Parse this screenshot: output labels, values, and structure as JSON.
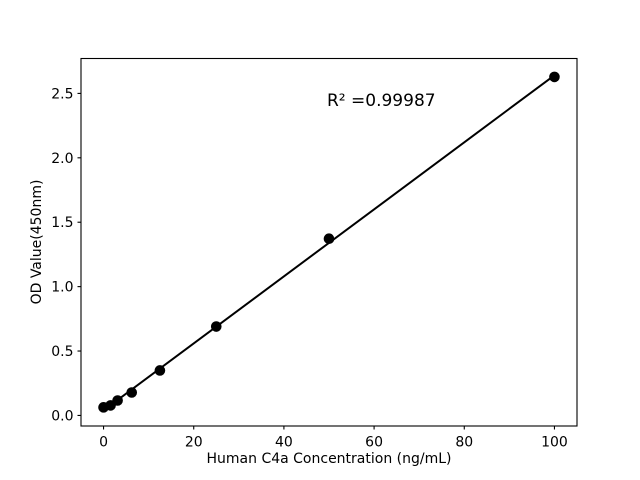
{
  "chart_data": {
    "type": "scatter",
    "title": "",
    "xlabel": "Human C4a Concentration (ng/mL)",
    "ylabel": "OD Value(450nm)",
    "annotation": "R² =0.99987",
    "x": [
      0,
      1.56,
      3.12,
      6.25,
      12.5,
      25,
      50,
      100
    ],
    "y": [
      0.063,
      0.078,
      0.116,
      0.178,
      0.349,
      0.69,
      1.372,
      2.628
    ],
    "fit": {
      "type": "linear",
      "r_squared": 0.99987
    },
    "xticks": [
      0,
      20,
      40,
      60,
      80,
      100
    ],
    "xtick_labels": [
      "0",
      "20",
      "40",
      "60",
      "80",
      "100"
    ],
    "yticks": [
      0.0,
      0.5,
      1.0,
      1.5,
      2.0,
      2.5
    ],
    "ytick_labels": [
      "0.0",
      "0.5",
      "1.0",
      "1.5",
      "2.0",
      "2.5"
    ],
    "xlim": [
      -5,
      105
    ],
    "ylim": [
      -0.082,
      2.771
    ],
    "grid": false,
    "legend": null,
    "marker_color": "#000000",
    "line_color": "#000000",
    "axis_color": "#000000",
    "background": "#ffffff"
  }
}
